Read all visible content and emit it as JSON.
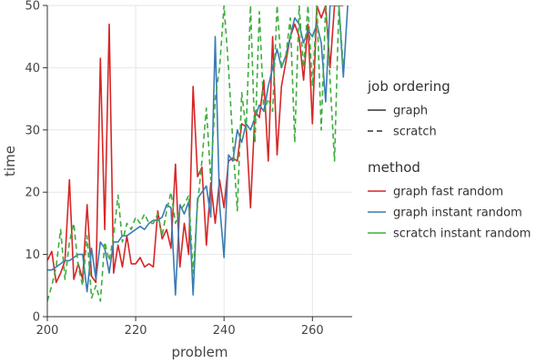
{
  "chart_data": {
    "type": "line",
    "xlabel": "problem",
    "ylabel": "time",
    "xlim": [
      200,
      269
    ],
    "ylim": [
      0,
      50
    ],
    "xticks": [
      200,
      220,
      240,
      260
    ],
    "yticks": [
      0,
      10,
      20,
      30,
      40,
      50
    ],
    "grid": true,
    "legend": {
      "placement": "right",
      "style_title": "job ordering",
      "styles": [
        {
          "name": "graph",
          "dash": "solid"
        },
        {
          "name": "scratch",
          "dash": "dashed"
        }
      ],
      "color_title": "method"
    },
    "series": [
      {
        "name": "graph fast random",
        "color": "#d62728",
        "dash": "solid",
        "x": [
          200,
          201,
          202,
          203,
          204,
          205,
          206,
          207,
          208,
          209,
          210,
          211,
          212,
          213,
          214,
          215,
          216,
          217,
          218,
          219,
          220,
          221,
          222,
          223,
          224,
          225,
          226,
          227,
          228,
          229,
          230,
          231,
          232,
          233,
          234,
          235,
          236,
          237,
          238,
          239,
          240,
          241,
          242,
          243,
          244,
          245,
          246,
          247,
          248,
          249,
          250,
          251,
          252,
          253,
          254,
          255,
          256,
          257,
          258,
          259,
          260,
          261,
          262,
          263,
          264,
          265,
          266,
          267
        ],
        "y": [
          9.0,
          10.5,
          5.5,
          7.0,
          9.0,
          22.0,
          6.0,
          8.5,
          6.0,
          18.0,
          6.5,
          5.5,
          41.5,
          14.0,
          47.0,
          7.0,
          11.5,
          8.0,
          13.0,
          8.5,
          8.5,
          9.5,
          8.0,
          8.5,
          8.0,
          17.0,
          12.5,
          14.0,
          11.0,
          24.5,
          8.0,
          15.0,
          10.0,
          37.0,
          22.5,
          24.0,
          11.5,
          21.5,
          15.0,
          22.0,
          17.5,
          25.0,
          25.5,
          25.0,
          31.0,
          30.5,
          17.5,
          33.0,
          32.0,
          38.0,
          25.0,
          45.0,
          26.0,
          37.0,
          41.0,
          45.0,
          47.0,
          45.0,
          38.0,
          47.0,
          31.0,
          50.0,
          48.0,
          50.0,
          40.0,
          50.0,
          50.0,
          50.0
        ]
      },
      {
        "name": "graph instant random",
        "color": "#3b7bb4",
        "dash": "solid",
        "x": [
          200,
          201,
          202,
          203,
          204,
          205,
          206,
          207,
          208,
          209,
          210,
          211,
          212,
          213,
          214,
          215,
          216,
          217,
          218,
          219,
          220,
          221,
          222,
          223,
          224,
          225,
          226,
          227,
          228,
          229,
          230,
          231,
          232,
          233,
          234,
          235,
          236,
          237,
          238,
          239,
          240,
          241,
          242,
          243,
          244,
          245,
          246,
          247,
          248,
          249,
          250,
          251,
          252,
          253,
          254,
          255,
          256,
          257,
          258,
          259,
          260,
          261,
          262,
          263,
          264,
          265,
          266,
          267,
          268
        ],
        "y": [
          7.5,
          7.5,
          8.0,
          8.5,
          9.0,
          9.0,
          9.5,
          10.0,
          10.0,
          4.0,
          11.0,
          6.0,
          12.0,
          11.0,
          7.0,
          12.0,
          12.0,
          13.0,
          13.0,
          13.5,
          14.0,
          14.5,
          14.0,
          15.0,
          15.5,
          15.5,
          16.0,
          18.0,
          17.5,
          3.5,
          18.0,
          16.5,
          18.5,
          3.5,
          19.0,
          20.0,
          21.0,
          16.0,
          45.0,
          18.0,
          9.5,
          26.0,
          25.0,
          30.0,
          28.0,
          31.0,
          30.0,
          32.0,
          34.0,
          33.0,
          37.0,
          40.0,
          43.0,
          40.0,
          42.0,
          45.0,
          48.0,
          47.0,
          44.0,
          46.0,
          45.0,
          47.0,
          44.0,
          34.5,
          50.0,
          50.0,
          50.0,
          38.5,
          50.0
        ]
      },
      {
        "name": "scratch instant random",
        "color": "#3fae3f",
        "dash": "dashed",
        "x": [
          200,
          201,
          202,
          203,
          204,
          205,
          206,
          207,
          208,
          209,
          210,
          211,
          212,
          213,
          214,
          215,
          216,
          217,
          218,
          219,
          220,
          221,
          222,
          223,
          224,
          225,
          226,
          227,
          228,
          229,
          230,
          231,
          232,
          233,
          234,
          235,
          236,
          237,
          238,
          239,
          240,
          241,
          242,
          243,
          244,
          245,
          246,
          247,
          248,
          249,
          250,
          251,
          252,
          253,
          254,
          255,
          256,
          257,
          258,
          259,
          260,
          261,
          262,
          263,
          264,
          265,
          266,
          267
        ],
        "y": [
          2.5,
          5.0,
          8.0,
          14.0,
          6.0,
          12.0,
          15.0,
          8.0,
          5.0,
          13.0,
          3.0,
          5.0,
          2.5,
          12.0,
          9.0,
          13.0,
          19.5,
          12.0,
          15.0,
          14.0,
          16.0,
          15.0,
          16.5,
          15.0,
          15.0,
          16.5,
          13.0,
          17.0,
          20.0,
          15.0,
          17.0,
          18.0,
          19.5,
          7.0,
          18.0,
          25.0,
          33.5,
          22.0,
          35.0,
          40.0,
          50.0,
          40.0,
          28.0,
          17.0,
          36.0,
          30.0,
          50.0,
          28.0,
          49.0,
          33.0,
          35.0,
          33.0,
          50.0,
          40.0,
          42.0,
          48.0,
          28.0,
          50.0,
          40.0,
          50.0,
          37.0,
          50.0,
          30.0,
          50.0,
          38.0,
          25.0,
          50.0,
          40.0
        ]
      }
    ]
  }
}
